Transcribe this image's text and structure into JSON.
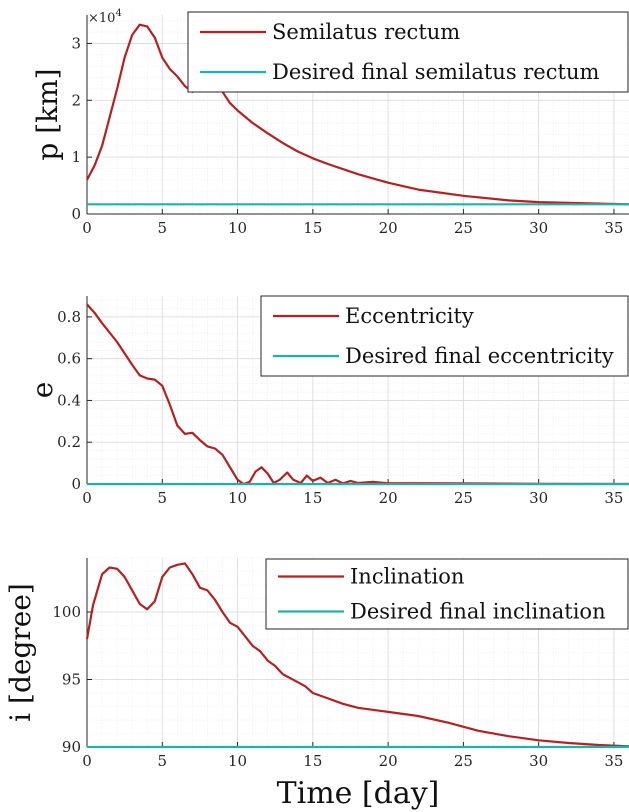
{
  "figure": {
    "xlabel": "Time [day]",
    "colors": {
      "actual": "#b22222",
      "desired": "#20b2aa",
      "grid": "#d9d9d9",
      "axis": "#262626"
    }
  },
  "chart_data": [
    {
      "type": "line",
      "ylabel": "p [km]",
      "exponent_label": "×10",
      "exponent_power": "4",
      "xlim": [
        0,
        36
      ],
      "ylim": [
        0,
        3.5
      ],
      "xticks": [
        0,
        5,
        10,
        15,
        20,
        25,
        30,
        35
      ],
      "yticks": [
        0,
        1,
        2,
        3
      ],
      "grid": true,
      "legend_position": "top-right",
      "series": [
        {
          "name": "Semilatus rectum",
          "color": "#b22222",
          "x": [
            0,
            0.5,
            1,
            1.5,
            2,
            2.5,
            3,
            3.5,
            4,
            4.5,
            5,
            5.5,
            6,
            6.5,
            7,
            7.5,
            8,
            8.5,
            9,
            9.5,
            10,
            11,
            12,
            13,
            14,
            15,
            16,
            18,
            20,
            22,
            25,
            28,
            30,
            33,
            36
          ],
          "y": [
            0.6,
            0.85,
            1.2,
            1.7,
            2.2,
            2.75,
            3.15,
            3.33,
            3.3,
            3.1,
            2.75,
            2.55,
            2.42,
            2.25,
            2.15,
            2.28,
            2.33,
            2.3,
            2.15,
            1.95,
            1.82,
            1.6,
            1.42,
            1.25,
            1.1,
            0.98,
            0.88,
            0.7,
            0.55,
            0.43,
            0.32,
            0.24,
            0.21,
            0.19,
            0.17
          ]
        },
        {
          "name": "Desired final semilatus rectum",
          "color": "#20b2aa",
          "x": [
            0,
            36
          ],
          "y": [
            0.17,
            0.17
          ]
        }
      ]
    },
    {
      "type": "line",
      "ylabel": "e",
      "xlim": [
        0,
        36
      ],
      "ylim": [
        0,
        0.9
      ],
      "xticks": [
        0,
        5,
        10,
        15,
        20,
        25,
        30,
        35
      ],
      "yticks": [
        0,
        0.2,
        0.4,
        0.6,
        0.8
      ],
      "grid": true,
      "legend_position": "top-right",
      "series": [
        {
          "name": "Eccentricity",
          "color": "#b22222",
          "x": [
            0,
            0.5,
            1,
            2,
            3,
            3.5,
            4,
            4.5,
            5,
            5.5,
            6,
            6.5,
            7,
            7.5,
            8,
            8.5,
            9,
            9.5,
            10,
            10.4,
            10.8,
            11.2,
            11.6,
            12,
            12.4,
            12.8,
            13.3,
            13.7,
            14.2,
            14.6,
            15,
            15.5,
            16,
            16.5,
            17,
            17.5,
            18,
            19,
            20,
            22,
            25,
            30,
            36
          ],
          "y": [
            0.86,
            0.82,
            0.77,
            0.68,
            0.57,
            0.52,
            0.505,
            0.5,
            0.47,
            0.38,
            0.28,
            0.24,
            0.245,
            0.21,
            0.18,
            0.17,
            0.14,
            0.08,
            0.02,
            0.0,
            0.01,
            0.06,
            0.08,
            0.05,
            0.005,
            0.02,
            0.055,
            0.02,
            0.005,
            0.04,
            0.015,
            0.03,
            0.005,
            0.02,
            0.003,
            0.015,
            0.005,
            0.01,
            0.004,
            0.004,
            0.003,
            0.001,
            0.0
          ]
        },
        {
          "name": "Desired final eccentricity",
          "color": "#20b2aa",
          "x": [
            0,
            36
          ],
          "y": [
            0.0,
            0.0
          ]
        }
      ]
    },
    {
      "type": "line",
      "ylabel": "i [degree]",
      "xlim": [
        0,
        36
      ],
      "ylim": [
        90,
        104
      ],
      "xticks": [
        0,
        5,
        10,
        15,
        20,
        25,
        30,
        35
      ],
      "yticks": [
        90,
        95,
        100
      ],
      "grid": true,
      "legend_position": "top-right",
      "series": [
        {
          "name": "Inclination",
          "color": "#b22222",
          "x": [
            0,
            0.4,
            1,
            1.5,
            2,
            2.5,
            3,
            3.5,
            4,
            4.5,
            5,
            5.5,
            6,
            6.5,
            7,
            7.5,
            8,
            8.5,
            9,
            9.5,
            10,
            10.5,
            11,
            11.5,
            12,
            12.5,
            13,
            13.5,
            14,
            14.5,
            15,
            16,
            17,
            18,
            20,
            22,
            24,
            26,
            28,
            30,
            32,
            34,
            36
          ],
          "y": [
            98,
            100.5,
            102.8,
            103.3,
            103.2,
            102.6,
            101.6,
            100.6,
            100.2,
            100.8,
            102.6,
            103.3,
            103.5,
            103.6,
            102.8,
            101.8,
            101.6,
            100.9,
            100.0,
            99.2,
            98.9,
            98.2,
            97.5,
            97.1,
            96.4,
            96.0,
            95.4,
            95.1,
            94.8,
            94.5,
            94.0,
            93.6,
            93.2,
            92.9,
            92.6,
            92.3,
            91.8,
            91.2,
            90.8,
            90.5,
            90.3,
            90.15,
            90.05
          ]
        },
        {
          "name": "Desired final inclination",
          "color": "#20b2aa",
          "x": [
            0,
            36
          ],
          "y": [
            90,
            90
          ]
        }
      ]
    }
  ]
}
